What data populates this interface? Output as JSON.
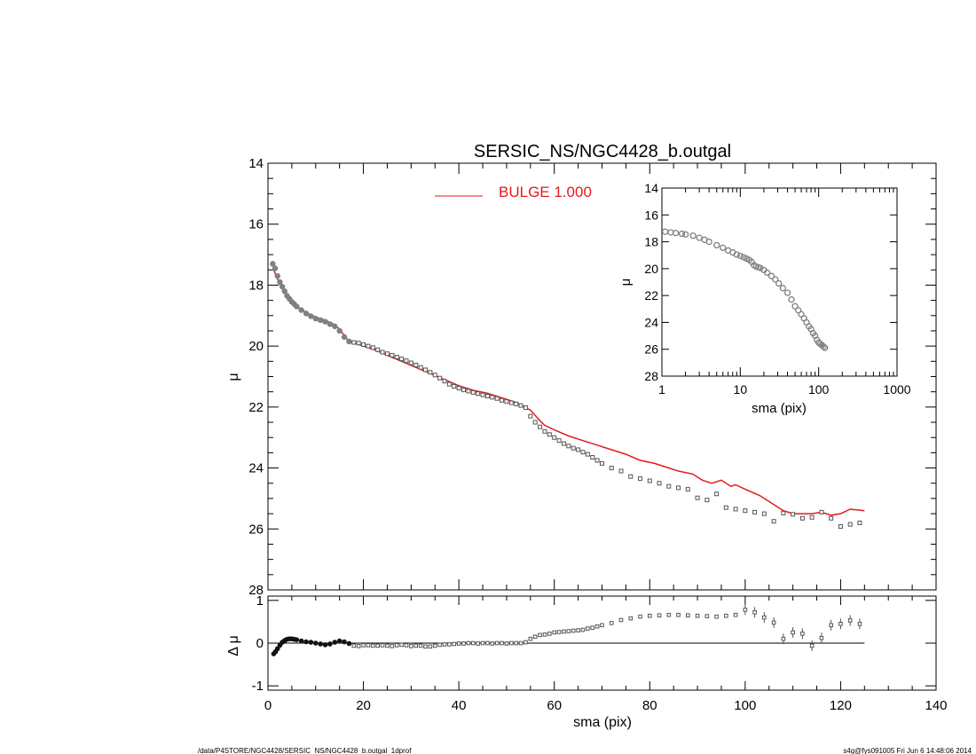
{
  "title": "SERSIC_NS/NGC4428_b.outgal",
  "footer_left": "/data/P4STORE/NGC4428/SERSIC_NS/NGC4428_b.outgal_1dprof",
  "footer_right": "s4g@fys091005  Fri Jun  6 14:48:06 2014",
  "colors": {
    "model": "#e41a1c",
    "data": "#808080",
    "axes": "#000000"
  },
  "chart_data": [
    {
      "type": "scatter",
      "panel": "main",
      "xlabel": "",
      "ylabel": "μ",
      "xlim": [
        0,
        140
      ],
      "ylim": [
        28,
        14
      ],
      "yticks": [
        14,
        16,
        18,
        20,
        22,
        24,
        26,
        28
      ],
      "legend": {
        "label": "BULGE  1.000",
        "placement": "top"
      },
      "series": [
        {
          "name": "BULGE  1.000",
          "style": "line",
          "x": [
            1.2,
            2,
            3,
            4,
            5,
            6,
            8,
            10,
            12,
            14,
            15,
            16,
            17,
            18,
            20,
            22,
            25,
            28,
            31,
            34,
            37,
            40,
            43,
            46,
            49,
            52,
            55,
            57,
            58,
            60,
            63,
            66,
            69,
            72,
            75,
            78,
            81,
            83,
            86,
            89,
            91,
            93,
            95,
            97,
            98,
            100,
            103,
            106,
            108,
            110,
            112,
            114,
            116,
            118,
            120,
            122,
            125
          ],
          "y": [
            17.5,
            17.8,
            18.1,
            18.35,
            18.55,
            18.7,
            18.9,
            19.05,
            19.15,
            19.3,
            19.45,
            19.65,
            19.85,
            19.9,
            20.0,
            20.1,
            20.3,
            20.5,
            20.7,
            20.9,
            21.1,
            21.3,
            21.45,
            21.55,
            21.7,
            21.85,
            22.1,
            22.45,
            22.6,
            22.75,
            22.95,
            23.1,
            23.25,
            23.4,
            23.55,
            23.75,
            23.85,
            23.95,
            24.1,
            24.2,
            24.4,
            24.5,
            24.4,
            24.6,
            24.55,
            24.7,
            24.9,
            25.2,
            25.4,
            25.5,
            25.5,
            25.5,
            25.45,
            25.55,
            25.5,
            25.35,
            25.4
          ]
        },
        {
          "name": "",
          "style": "points",
          "x": [
            1,
            1.5,
            2,
            2.5,
            3,
            3.5,
            4,
            4.5,
            5,
            5.5,
            6,
            7,
            8,
            9,
            10,
            11,
            12,
            13,
            14,
            15,
            16,
            17,
            18,
            19,
            20,
            21,
            22,
            23,
            24,
            25,
            26,
            27,
            28,
            29,
            30,
            31,
            32,
            33,
            34,
            35,
            36,
            37,
            38,
            39,
            40,
            41,
            42,
            43,
            44,
            45,
            46,
            47,
            48,
            49,
            50,
            51,
            52,
            53,
            54,
            55,
            56,
            57,
            58,
            59,
            60,
            61,
            62,
            63,
            64,
            65,
            66,
            67,
            68,
            69,
            70,
            72,
            74,
            76,
            78,
            80,
            82,
            84,
            86,
            88,
            90,
            92,
            94,
            96,
            98,
            100,
            102,
            104,
            106,
            108,
            110,
            112,
            114,
            116,
            118,
            120,
            122,
            124
          ],
          "y": [
            17.3,
            17.45,
            17.7,
            17.9,
            18.05,
            18.2,
            18.35,
            18.45,
            18.55,
            18.62,
            18.7,
            18.82,
            18.93,
            19.02,
            19.1,
            19.15,
            19.2,
            19.28,
            19.35,
            19.5,
            19.7,
            19.85,
            19.88,
            19.9,
            19.95,
            20.0,
            20.05,
            20.12,
            20.2,
            20.25,
            20.3,
            20.36,
            20.42,
            20.48,
            20.55,
            20.62,
            20.7,
            20.78,
            20.86,
            20.95,
            21.05,
            21.15,
            21.25,
            21.32,
            21.38,
            21.44,
            21.48,
            21.52,
            21.56,
            21.6,
            21.64,
            21.68,
            21.72,
            21.78,
            21.82,
            21.86,
            21.9,
            21.95,
            22.02,
            22.3,
            22.5,
            22.65,
            22.8,
            22.9,
            23.0,
            23.1,
            23.2,
            23.28,
            23.35,
            23.4,
            23.48,
            23.55,
            23.65,
            23.75,
            23.85,
            24.0,
            24.1,
            24.28,
            24.35,
            24.42,
            24.5,
            24.6,
            24.65,
            24.7,
            24.98,
            25.05,
            24.85,
            25.3,
            25.35,
            25.4,
            25.45,
            25.5,
            25.75,
            25.48,
            25.52,
            25.65,
            25.62,
            25.45,
            25.65,
            25.92,
            25.85,
            25.8
          ]
        }
      ]
    },
    {
      "type": "scatter",
      "panel": "residual",
      "xlabel": "sma (pix)",
      "ylabel": "Δ μ",
      "xlim": [
        0,
        140
      ],
      "ylim": [
        -1.1,
        1.1
      ],
      "xticks": [
        0,
        20,
        40,
        60,
        80,
        100,
        120,
        140
      ],
      "yticks": [
        -1,
        0,
        1
      ],
      "series": [
        {
          "name": "",
          "style": "points",
          "x": [
            1.2,
            1.6,
            2,
            2.5,
            3,
            3.5,
            4,
            4.5,
            5,
            5.5,
            6,
            7,
            8,
            9,
            10,
            11,
            12,
            13,
            14,
            15,
            16,
            17,
            18,
            19,
            20,
            21,
            22,
            23,
            24,
            25,
            26,
            27,
            28,
            29,
            30,
            31,
            32,
            33,
            34,
            35,
            36,
            37,
            38,
            39,
            40,
            41,
            42,
            43,
            44,
            45,
            46,
            47,
            48,
            49,
            50,
            51,
            52,
            53,
            54,
            55,
            56,
            57,
            58,
            59,
            60,
            61,
            62,
            63,
            64,
            65,
            66,
            67,
            68,
            69,
            70,
            72,
            74,
            76,
            78,
            80,
            82,
            84,
            86,
            88,
            90,
            92,
            94,
            96,
            98,
            100,
            102,
            104,
            106,
            108,
            110,
            112,
            114,
            116,
            118,
            120,
            122,
            124
          ],
          "y": [
            -0.25,
            -0.2,
            -0.13,
            -0.05,
            0.02,
            0.06,
            0.09,
            0.1,
            0.1,
            0.09,
            0.08,
            0.05,
            0.03,
            0.02,
            0.0,
            -0.02,
            -0.04,
            -0.02,
            0.02,
            0.05,
            0.03,
            -0.01,
            -0.06,
            -0.07,
            -0.05,
            -0.05,
            -0.06,
            -0.06,
            -0.05,
            -0.06,
            -0.07,
            -0.05,
            -0.04,
            -0.05,
            -0.07,
            -0.06,
            -0.06,
            -0.08,
            -0.08,
            -0.06,
            -0.04,
            -0.03,
            -0.03,
            -0.02,
            -0.01,
            -0.01,
            0.0,
            0.0,
            -0.01,
            0.0,
            0.0,
            -0.01,
            0.0,
            0.0,
            -0.01,
            0.0,
            0.0,
            0.0,
            0.02,
            0.1,
            0.15,
            0.19,
            0.2,
            0.22,
            0.25,
            0.26,
            0.27,
            0.28,
            0.29,
            0.3,
            0.31,
            0.34,
            0.36,
            0.39,
            0.42,
            0.47,
            0.54,
            0.58,
            0.62,
            0.64,
            0.65,
            0.66,
            0.66,
            0.65,
            0.64,
            0.63,
            0.62,
            0.64,
            0.66,
            0.78,
            0.72,
            0.6,
            0.48,
            0.1,
            0.25,
            0.22,
            -0.06,
            0.12,
            0.42,
            0.45,
            0.53,
            0.45
          ]
        },
        {
          "name": "",
          "style": "reference-line",
          "x": [
            0,
            125
          ],
          "y": [
            0,
            0
          ]
        }
      ]
    },
    {
      "type": "scatter",
      "panel": "inset",
      "xlabel": "sma (pix)",
      "ylabel": "μ",
      "xscale": "log",
      "xlim": [
        1,
        1000
      ],
      "ylim": [
        28,
        14
      ],
      "xticks": [
        1,
        10,
        100,
        1000
      ],
      "yticks": [
        14,
        16,
        18,
        20,
        22,
        24,
        26,
        28
      ],
      "series": [
        {
          "name": "",
          "style": "points",
          "x": [
            1.1,
            1.3,
            1.5,
            1.8,
            2,
            2.5,
            3,
            3.5,
            4,
            5,
            6,
            7,
            8,
            9,
            10,
            11,
            12,
            13,
            14,
            15,
            16,
            17,
            18,
            20,
            22,
            25,
            28,
            31,
            35,
            40,
            45,
            50,
            55,
            60,
            65,
            70,
            75,
            80,
            85,
            90,
            95,
            100,
            105,
            110,
            115,
            120
          ],
          "y": [
            17.25,
            17.3,
            17.35,
            17.4,
            17.45,
            17.55,
            17.7,
            17.85,
            18.0,
            18.25,
            18.45,
            18.65,
            18.8,
            18.95,
            19.05,
            19.15,
            19.25,
            19.35,
            19.5,
            19.75,
            19.85,
            19.9,
            19.95,
            20.1,
            20.3,
            20.55,
            20.8,
            21.1,
            21.45,
            21.8,
            22.3,
            22.8,
            23.1,
            23.4,
            23.7,
            24.0,
            24.3,
            24.5,
            24.8,
            25.0,
            25.3,
            25.5,
            25.6,
            25.7,
            25.8,
            25.9
          ]
        }
      ]
    }
  ]
}
